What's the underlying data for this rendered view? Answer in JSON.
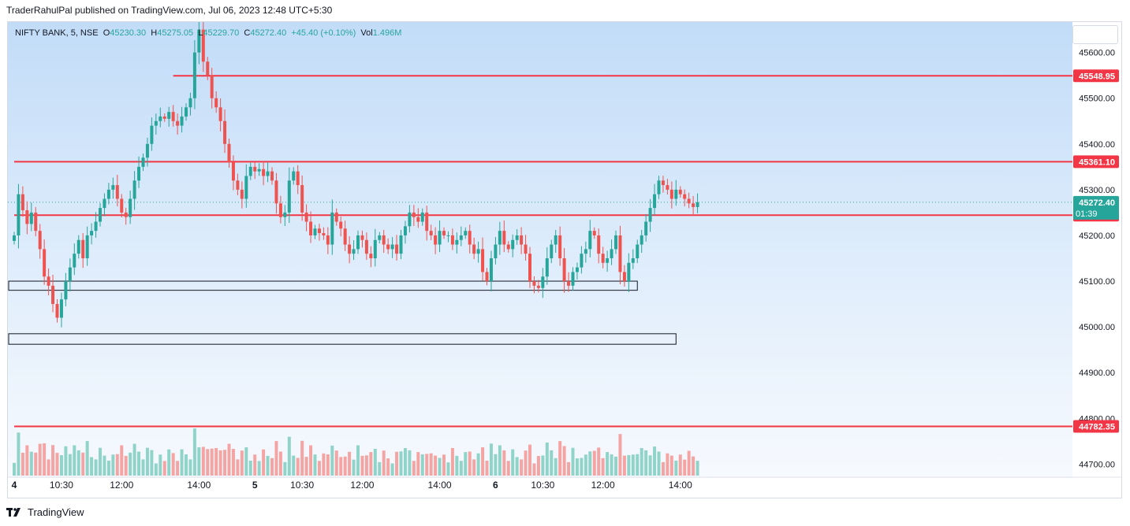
{
  "header": {
    "published": "TraderRahulPal published on TradingView.com, Jul 06, 2023 12:48 UTC+5:30"
  },
  "legend": {
    "symbol": "NIFTY BANK, 5, NSE",
    "o_label": "O",
    "o": "45230.30",
    "h_label": "H",
    "h": "45275.05",
    "l_label": "L",
    "l": "45229.70",
    "c_label": "C",
    "c": "45272.40",
    "change": "+45.40 (+0.10%)",
    "vol_label": "Vol",
    "vol": "1.496M"
  },
  "footer": {
    "brand": "TradingView",
    "logo": "tv-logo-icon"
  },
  "colors": {
    "up": "#26a69a",
    "down": "#ef5350",
    "level": "#f23645",
    "vol_up": "#8fd3c9",
    "vol_down": "#f5a4a4"
  },
  "chart_data": {
    "type": "candlestick",
    "y_axis": {
      "ticks": [
        44700,
        44800,
        44900,
        45000,
        45100,
        45200,
        45300,
        45400,
        45500,
        45600
      ],
      "tick_labels": [
        "44700.00",
        "44800.00",
        "44900.00",
        "45000.00",
        "45100.00",
        "45200.00",
        "45300.00",
        "45400.00",
        "45500.00",
        "45600.00"
      ],
      "range": [
        44630,
        45670
      ],
      "position": "right"
    },
    "x_axis": {
      "labels": [
        "4",
        "10:30",
        "12:00",
        "14:00",
        "5",
        "10:30",
        "12:00",
        "14:00",
        "6",
        "10:30",
        "12:00",
        "14:00"
      ],
      "label_bars": [
        0,
        11,
        25,
        43,
        56,
        67,
        81,
        99,
        112,
        123,
        137,
        155
      ],
      "bold": [
        true,
        false,
        false,
        false,
        true,
        false,
        false,
        false,
        true,
        false,
        false,
        false
      ]
    },
    "levels": [
      {
        "price": 45548.95,
        "label": "45548.95",
        "start_bar": 37
      },
      {
        "price": 45361.1,
        "label": "45361.10",
        "start_bar": 0
      },
      {
        "price": 45244.2,
        "label": "45244.20",
        "start_bar": 0
      },
      {
        "price": 44782.35,
        "label": "44782.35",
        "start_bar": 0
      }
    ],
    "last_price": {
      "price": 45272.4,
      "label": "45272.40",
      "countdown": "01:39"
    },
    "zones": [
      {
        "top": 45100,
        "bottom": 45080,
        "start_bar": 0,
        "end_bar": 145
      },
      {
        "top": 44985,
        "bottom": 44962,
        "start_bar": 0,
        "end_bar": 154
      }
    ],
    "closes": [
      45200,
      45290,
      45255,
      45225,
      45250,
      45210,
      45170,
      45110,
      45090,
      45050,
      45020,
      45060,
      45100,
      45130,
      45160,
      45190,
      45150,
      45200,
      45210,
      45230,
      45260,
      45280,
      45300,
      45310,
      45280,
      45250,
      45240,
      45280,
      45320,
      45350,
      45370,
      45400,
      45440,
      45450,
      45460,
      45455,
      45470,
      45450,
      45440,
      45460,
      45480,
      45500,
      45600,
      45650,
      45580,
      45550,
      45500,
      45480,
      45450,
      45400,
      45360,
      45320,
      45300,
      45280,
      45330,
      45350,
      45340,
      45345,
      45330,
      45340,
      45320,
      45270,
      45240,
      45250,
      45320,
      45340,
      45310,
      45250,
      45230,
      45200,
      45215,
      45205,
      45200,
      45180,
      45250,
      45230,
      45215,
      45180,
      45160,
      45170,
      45200,
      45190,
      45160,
      45150,
      45190,
      45200,
      45180,
      45170,
      45180,
      45160,
      45200,
      45220,
      45250,
      45240,
      45230,
      45250,
      45210,
      45200,
      45180,
      45210,
      45200,
      45200,
      45180,
      45190,
      45200,
      45210,
      45180,
      45160,
      45170,
      45120,
      45100,
      45150,
      45180,
      45210,
      45180,
      45170,
      45190,
      45200,
      45180,
      45160,
      45100,
      45090,
      45085,
      45110,
      45150,
      45180,
      45200,
      45150,
      45100,
      45090,
      45120,
      45130,
      45160,
      45170,
      45210,
      45200,
      45160,
      45140,
      45150,
      45170,
      45200,
      45120,
      45100,
      45140,
      45150,
      45180,
      45200,
      45230,
      45260,
      45290,
      45320,
      45310,
      45300,
      45280,
      45300,
      45290,
      45280,
      45270,
      45262,
      45272.4
    ],
    "volume_scale": 1.0
  }
}
